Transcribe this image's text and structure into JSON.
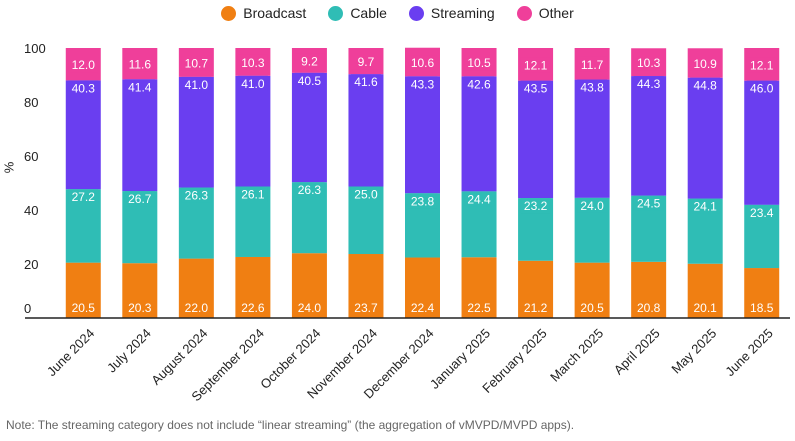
{
  "chart_data": {
    "type": "bar",
    "stacked": true,
    "ylabel": "%",
    "ylim": [
      0,
      100
    ],
    "yticks": [
      0,
      20,
      40,
      60,
      80,
      100
    ],
    "categories": [
      "June 2024",
      "July 2024",
      "August 2024",
      "September 2024",
      "October 2024",
      "November 2024",
      "December 2024",
      "January 2025",
      "February 2025",
      "March 2025",
      "April 2025",
      "May 2025",
      "June 2025"
    ],
    "series": [
      {
        "name": "Broadcast",
        "color": "#f07f12",
        "values": [
          20.5,
          20.3,
          22.0,
          22.6,
          24.0,
          23.7,
          22.4,
          22.5,
          21.2,
          20.5,
          20.8,
          20.1,
          18.5
        ],
        "labels": [
          "20.5",
          "20.3",
          "22.0",
          "22.6",
          "24.0",
          "23.7",
          "22.4",
          "22.5",
          "21.2",
          "20.5",
          "20.8",
          "20.1",
          "18.5"
        ]
      },
      {
        "name": "Cable",
        "color": "#2fbdb5",
        "values": [
          27.2,
          26.7,
          26.3,
          26.1,
          26.3,
          25.0,
          23.8,
          24.4,
          23.2,
          24.0,
          24.5,
          24.1,
          23.4
        ],
        "labels": [
          "27.2",
          "26.7",
          "26.3",
          "26.1",
          "26.3",
          "25.0",
          "23.8",
          "24.4",
          "23.2",
          "24.0",
          "24.5",
          "24.1",
          "23.4"
        ]
      },
      {
        "name": "Streaming",
        "color": "#6a3ef0",
        "values": [
          40.3,
          41.4,
          41.0,
          41.0,
          40.5,
          41.6,
          43.3,
          42.6,
          43.5,
          43.8,
          44.3,
          44.8,
          46.0
        ],
        "labels": [
          "40.3",
          "41.4",
          "41.0",
          "41.0",
          "40.5",
          "41.6",
          "43.3",
          "42.6",
          "43.5",
          "43.8",
          "44.3",
          "44.8",
          "46.0"
        ]
      },
      {
        "name": "Other",
        "color": "#ef3f9a",
        "values": [
          12.0,
          11.6,
          10.7,
          10.3,
          9.2,
          9.7,
          10.6,
          10.5,
          12.1,
          11.7,
          10.3,
          10.9,
          12.1
        ],
        "labels": [
          "12.0",
          "11.6",
          "10.7",
          "10.3",
          "9.2",
          "9.7",
          "10.6",
          "10.5",
          "12.1",
          "11.7",
          "10.3",
          "10.9",
          "12.1"
        ]
      }
    ],
    "legend_position": "top-center",
    "grid": false
  },
  "note": "Note: The streaming category does not include “linear streaming” (the aggregation of vMVPD/MVPD apps)."
}
